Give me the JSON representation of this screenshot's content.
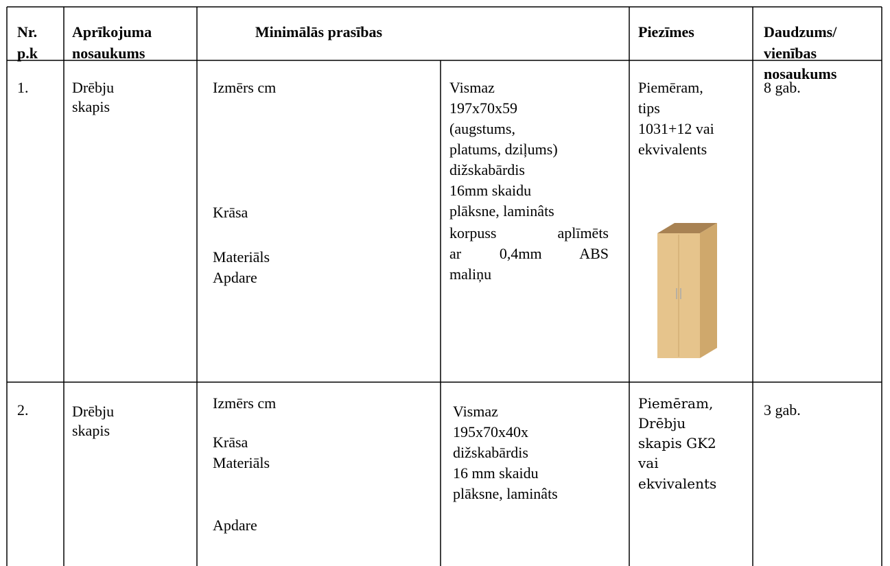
{
  "table": {
    "header": [
      [
        "Nr.",
        "p.k"
      ],
      [
        "Aprīkojuma",
        "nosaukums"
      ],
      [
        "Minimālās prasības"
      ],
      [
        "Piezīmes"
      ],
      [
        "Daudzums/",
        "vienības",
        "nosaukums"
      ]
    ],
    "rows": [
      {
        "number": "1.",
        "name": [
          "Drēbju",
          "skapis"
        ],
        "parameters": [
          "Izmērs cm",
          "Krāsa",
          "Materiāls",
          "Apdare"
        ],
        "requirements": [
          "Vismaz",
          "197x70x59",
          "(augstums,",
          "platums, dziļums)",
          "dižskabārdis",
          "16mm skaidu",
          "plāksne, laminâts",
          "korpuss aplīmēts",
          "ar 0,4mm ABS",
          "maliņu"
        ],
        "notes": [
          "Piemēram,",
          "tips",
          "1031+12 vai",
          "ekvivalents"
        ],
        "quantity": "8 gab."
      },
      {
        "number": "2.",
        "name": [
          "Drēbju",
          "skapis"
        ],
        "parameters": [
          "Izmērs cm",
          "Krāsa",
          "Materiāls",
          "Apdare"
        ],
        "requirements": [
          "Vismaz",
          "195x70x40x",
          "dižskabārdis",
          "16 mm skaidu",
          "plāksne, laminâts"
        ],
        "notes": [
          "Piemēram,",
          "Drēbju",
          "skapis GK2",
          "vai",
          "ekvivalents"
        ],
        "quantity": "3 gab."
      }
    ]
  }
}
